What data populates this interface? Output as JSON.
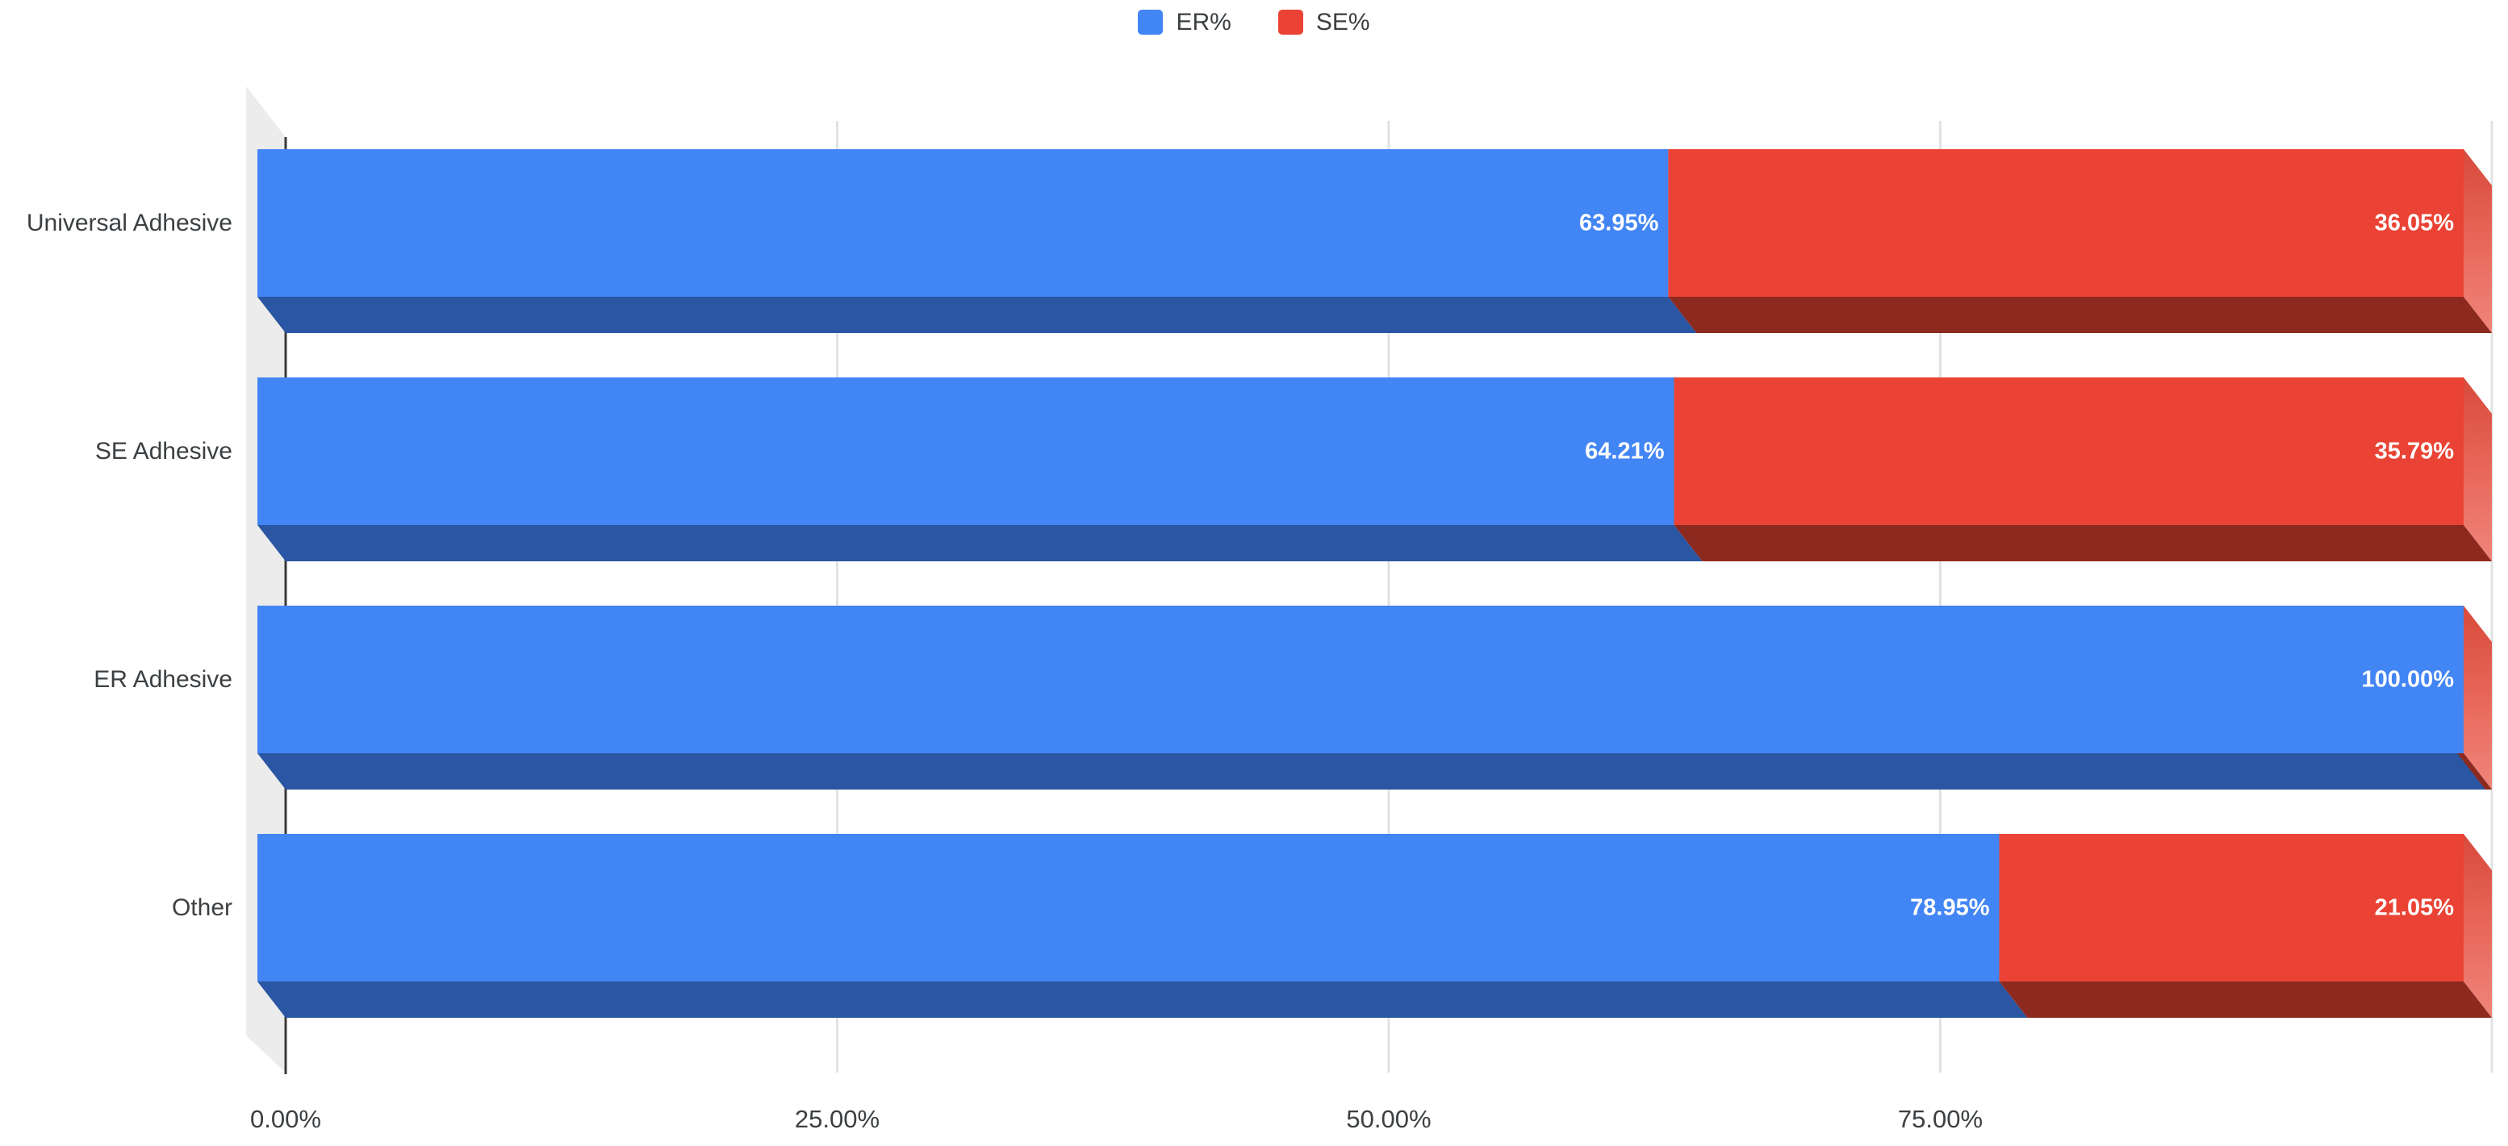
{
  "chart_data": {
    "type": "bar",
    "stacked": true,
    "orientation": "horizontal",
    "unit": "%",
    "categories": [
      "Universal Adhesive",
      "SE Adhesive",
      "ER Adhesive",
      "Other"
    ],
    "series": [
      {
        "name": "ER%",
        "color": "#4285f4",
        "depth_color": "#2a56a3",
        "values": [
          63.95,
          64.21,
          100.0,
          78.95
        ],
        "labels": [
          "63.95%",
          "64.21%",
          "100.00%",
          "78.95%"
        ]
      },
      {
        "name": "SE%",
        "color": "#ea4335",
        "depth_color": "#8c2a20",
        "values": [
          36.05,
          35.79,
          0,
          21.05
        ],
        "labels": [
          "36.05%",
          "35.79%",
          "",
          "21.05%"
        ]
      }
    ],
    "x_axis": {
      "range": [
        0,
        100
      ],
      "tick_values": [
        0,
        25,
        50,
        75
      ],
      "tick_labels": [
        "0.00%",
        "25.00%",
        "50.00%",
        "75.00%"
      ],
      "grid": true
    },
    "legend": {
      "position": "top",
      "entries": [
        "ER%",
        "SE%"
      ]
    },
    "style_colors": {
      "cap_top": "#d84a3c",
      "cap_mid": "#e8675a",
      "cap_bottom": "#f0857a",
      "wall": "#ececec",
      "gridline": "#e2e2e2",
      "axis_line": "#3a3a3a",
      "category_text": "#3c4043",
      "tick_text": "#3c4043",
      "data_label_text": "#ffffff"
    }
  }
}
